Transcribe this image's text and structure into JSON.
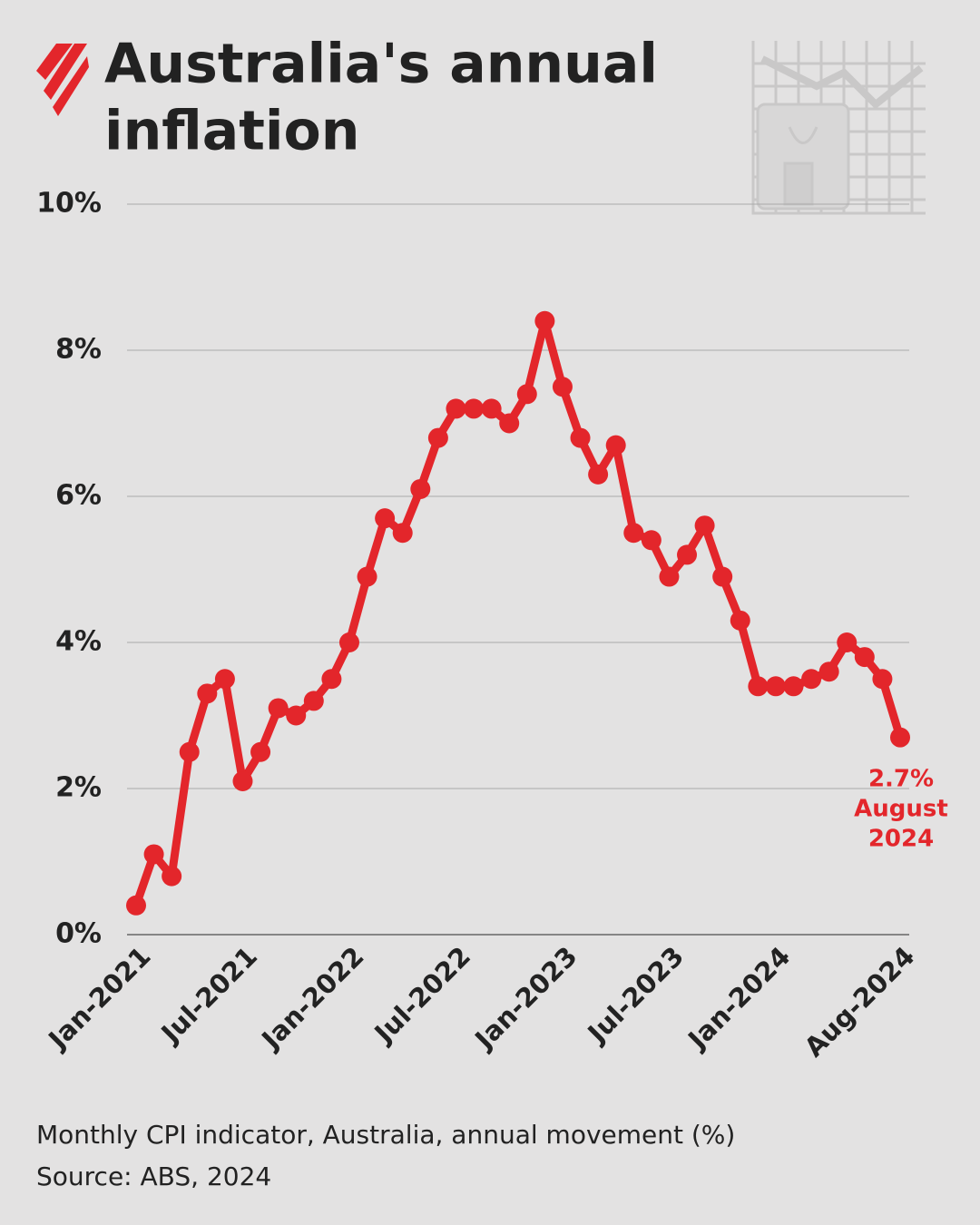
{
  "chart_data": {
    "type": "line",
    "title": [
      "Australia's annual",
      "inflation"
    ],
    "categories": [
      "Jan-2021",
      null,
      null,
      null,
      null,
      null,
      "Jul-2021",
      null,
      null,
      null,
      null,
      null,
      "Jan-2022",
      null,
      null,
      null,
      null,
      null,
      "Jul-2022",
      null,
      null,
      null,
      null,
      null,
      "Jan-2023",
      null,
      null,
      null,
      null,
      null,
      "Jul-2023",
      null,
      null,
      null,
      null,
      null,
      "Jan-2024",
      null,
      null,
      null,
      null,
      null,
      null,
      "Aug-2024"
    ],
    "series": [
      {
        "color": "#e3262b",
        "values": [
          0.4,
          1.1,
          0.8,
          2.5,
          3.3,
          3.5,
          2.1,
          2.5,
          3.1,
          3.0,
          3.2,
          3.5,
          4.0,
          4.9,
          5.7,
          5.5,
          6.1,
          6.8,
          7.2,
          7.2,
          7.2,
          7.0,
          7.4,
          8.4,
          7.5,
          6.8,
          6.3,
          6.7,
          5.5,
          5.4,
          4.9,
          5.2,
          5.6,
          4.9,
          4.3,
          3.4,
          3.4,
          3.4,
          3.5,
          3.6,
          4.0,
          3.8,
          3.5,
          2.7
        ]
      }
    ],
    "ylim": [
      0,
      10
    ],
    "yticks": [
      {
        "value": 0,
        "label": "0%"
      },
      {
        "value": 2,
        "label": "2%"
      },
      {
        "value": 4,
        "label": "4%"
      },
      {
        "value": 6,
        "label": "6%"
      },
      {
        "value": 8,
        "label": "8%"
      },
      {
        "value": 10,
        "label": "10%"
      }
    ],
    "grid": true,
    "annotation": [
      "2.7%",
      "August",
      "2024"
    ],
    "notes": [
      "Monthly CPI indicator, Australia, annual movement (%)",
      "Source: ABS, 2024"
    ]
  }
}
